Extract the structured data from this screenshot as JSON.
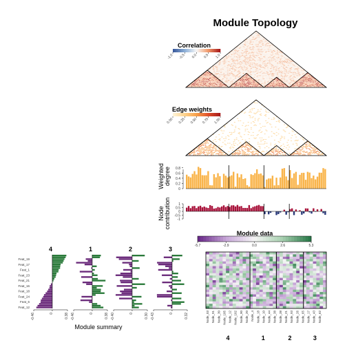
{
  "chart_data": {
    "title": "Module Topology",
    "modules": [
      "4",
      "1",
      "2",
      "3"
    ],
    "module_sizes": [
      22,
      18,
      13,
      19
    ],
    "correlation_legend": {
      "title": "Correlation",
      "ticks": [
        "-1.0",
        "-0.5",
        "0.0",
        "0.5",
        "1.0"
      ],
      "colors": [
        "#3a5a9c",
        "#8db0d8",
        "#f7f7f7",
        "#f29a6a",
        "#a81a1a"
      ]
    },
    "edge_legend": {
      "title": "Edge weights",
      "ticks": [
        "0.00",
        "0.25",
        "0.50",
        "0.75",
        "1.00"
      ],
      "colors": [
        "#fff4d6",
        "#fdd08a",
        "#f7a04a",
        "#e0502a",
        "#a81a1a"
      ]
    },
    "weighted_degree": {
      "ylabel": "Weighted degree",
      "ticks": [
        "0",
        "0.2",
        "0.4",
        "0.6",
        "0.8"
      ],
      "ylim": [
        0,
        0.9
      ],
      "color": "#f9b44a"
    },
    "node_contribution": {
      "ylabel": "Node contribution",
      "ticks": [
        "-1",
        "-0.5",
        "0",
        "0.5",
        "1"
      ],
      "ylim": [
        -1,
        1
      ],
      "colors": {
        "positive": "#a8123a",
        "negative": "#2a3a7a"
      }
    },
    "module_data": {
      "title": "Module data",
      "ticks": [
        "-5.7",
        "-2.9",
        "0.0",
        "2.6",
        "5.3"
      ],
      "colors": [
        "#6a2a8a",
        "#c8a8d8",
        "#f5f5f5",
        "#a8d0b0",
        "#2a7a4a"
      ]
    },
    "module_summary": {
      "xlabel": "Module summary",
      "feature_labels": [
        "Feat_19",
        "Feat_17",
        "Feat_1",
        "Feat_23",
        "Feat_21",
        "Feat_16",
        "Feat_18",
        "Feat_24",
        "Feat_6",
        "Feat_12"
      ],
      "x_ticks": [
        [
          "-0.46",
          "0",
          "0.38"
        ],
        [
          "-0.46",
          "0",
          "0.38"
        ],
        [
          "-0.40",
          "0",
          "0.30"
        ],
        [
          "-0.43",
          "0",
          "0.32"
        ]
      ],
      "colors": {
        "positive": "#2a7a3a",
        "negative": "#6a2a7a"
      }
    },
    "node_labels": [
      "Node_03",
      "Node_91",
      "Node_30",
      "Node_105",
      "Node_12",
      "Node_102",
      "Node_90",
      "Node_20",
      "Node_4",
      "Node_18",
      "Node_10",
      "Node_44",
      "Node_38",
      "Node_38",
      "Node_21",
      "Node_93",
      "Node_26",
      "Node_65",
      "Node_17",
      "Node_43",
      "Node_62"
    ]
  }
}
